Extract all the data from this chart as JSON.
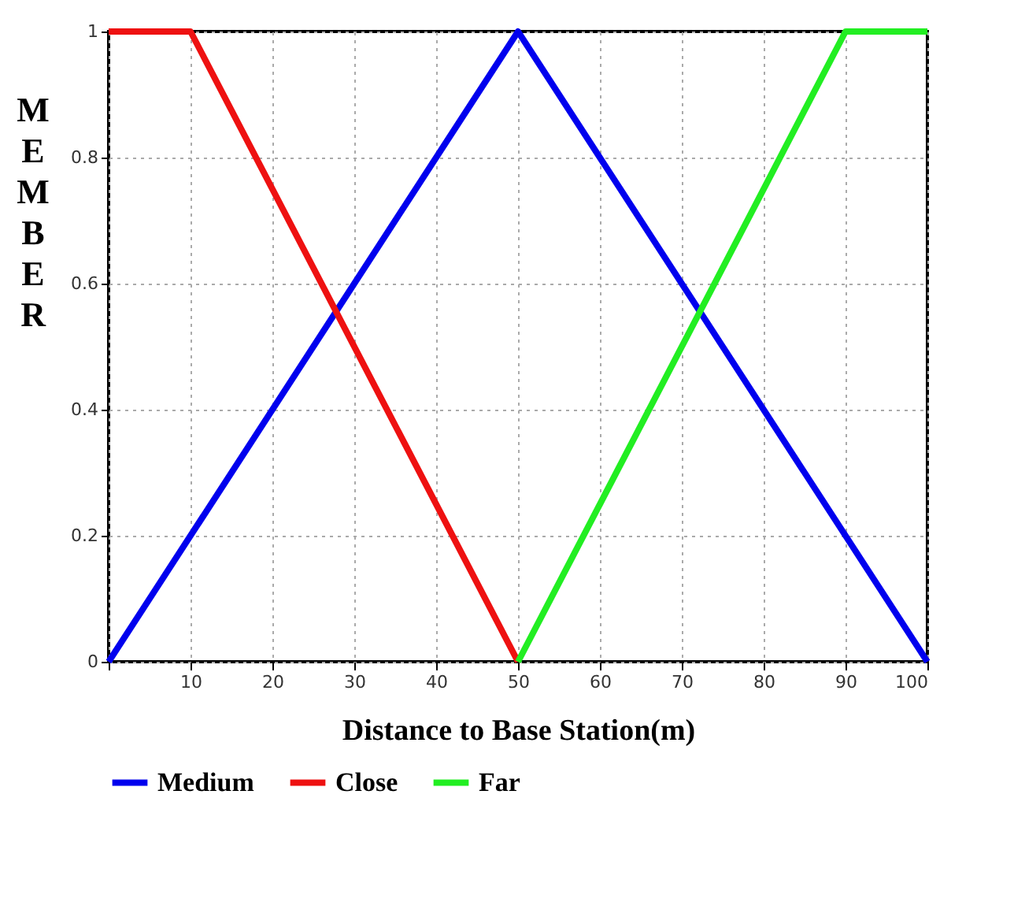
{
  "chart_data": {
    "type": "line",
    "xlabel": "Distance to Base Station(m)",
    "ylabel": "MEMBER",
    "xlim": [
      0,
      100
    ],
    "ylim": [
      0,
      1
    ],
    "xticks": [
      {
        "value": 0,
        "label": null
      },
      10,
      20,
      30,
      40,
      50,
      60,
      70,
      80,
      90,
      100
    ],
    "yticks": [
      0,
      0.2,
      0.4,
      0.6,
      0.8,
      1
    ],
    "series": [
      {
        "name": "Medium",
        "color": "#0000ee",
        "x": [
          0,
          50,
          100
        ],
        "values": [
          0,
          1,
          0
        ]
      },
      {
        "name": "Close",
        "color": "#ee1111",
        "x": [
          0,
          10,
          50
        ],
        "values": [
          1,
          1,
          0
        ]
      },
      {
        "name": "Far",
        "color": "#22ee22",
        "x": [
          50,
          90,
          100
        ],
        "values": [
          0,
          1,
          1
        ]
      }
    ],
    "grid": true,
    "legend": "bottom",
    "marker": "none",
    "line_style": "solid"
  }
}
